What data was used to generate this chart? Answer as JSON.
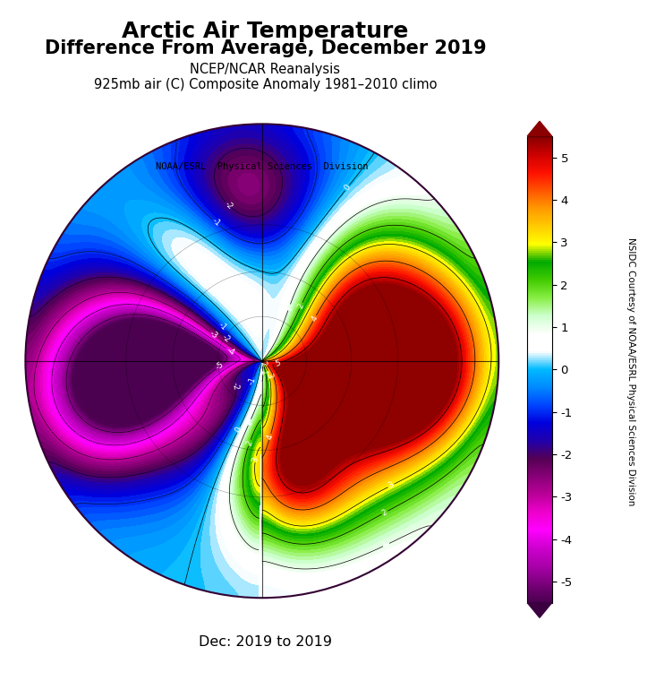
{
  "title_line1": "Arctic Air Temperature",
  "title_line2": "Difference From Average, December 2019",
  "subtitle1": "NCEP/NCAR Reanalysis",
  "subtitle2": "925mb air (C) Composite Anomaly 1981–2010 climo",
  "watermark": "NOAA/ESRL  Physical Sciences  Division",
  "footer": "Dec: 2019 to 2019",
  "colorbar_label": "NSIDC Courtesy of NOAA/ESRL Physical Sciences Division",
  "vmin": -5,
  "vmax": 5,
  "colorbar_ticks": [
    5,
    4,
    3,
    2,
    1,
    0,
    -1,
    -2,
    -3,
    -4,
    -5
  ],
  "colormap_colors": [
    "#4B0050",
    "#7B007B",
    "#AA00AA",
    "#CC00CC",
    "#FF00FF",
    "#EE00CC",
    "#BB0099",
    "#880077",
    "#550055",
    "#2200AA",
    "#0000DD",
    "#0044FF",
    "#0088FF",
    "#00BBFF",
    "#FFFFFF",
    "#FFFFFF",
    "#CCFFCC",
    "#88EE44",
    "#44CC00",
    "#00AA00",
    "#FFFF00",
    "#FFCC00",
    "#FF9900",
    "#FF5500",
    "#FF1100",
    "#CC0000",
    "#880000"
  ],
  "figsize": [
    7.23,
    7.6
  ],
  "dpi": 100
}
